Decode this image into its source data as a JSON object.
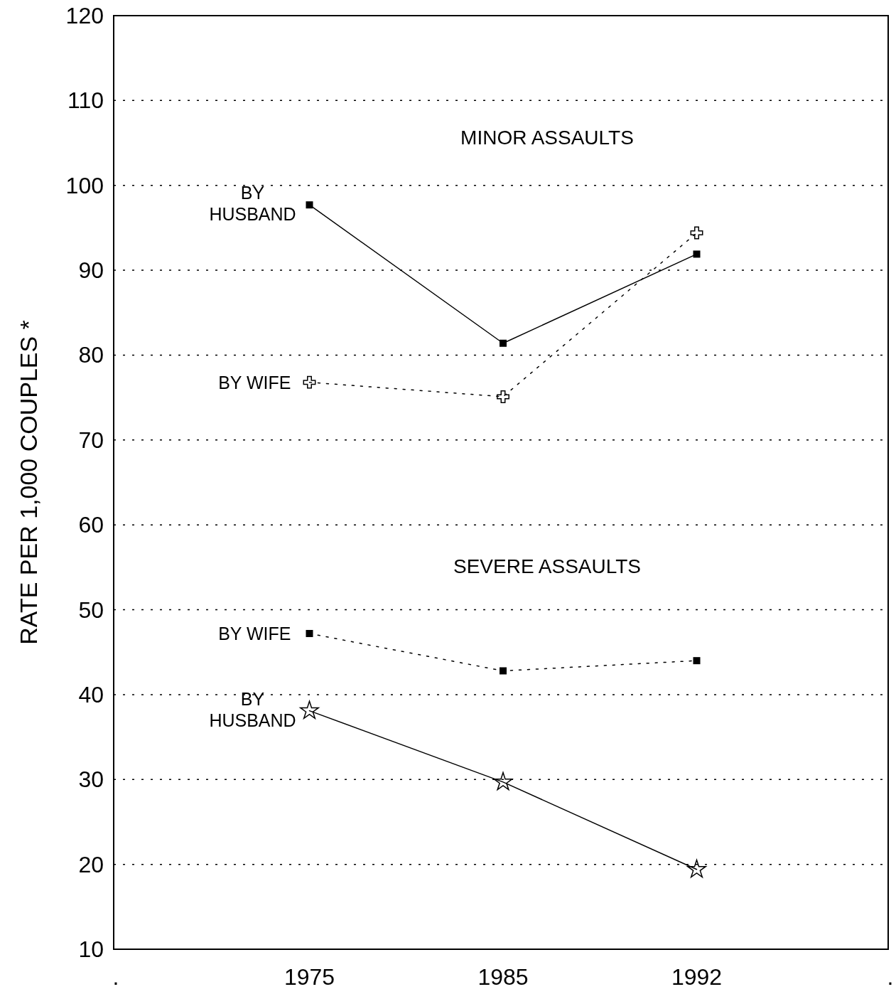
{
  "chart_data": {
    "type": "line",
    "ylabel": "RATE PER 1,000 COUPLES *",
    "categories": [
      ".",
      "1975",
      "1985",
      "1992",
      "."
    ],
    "series": [
      {
        "name": "BY HUSBAND",
        "color": "#000000",
        "values": [
          null,
          97.7,
          81.4,
          91.9,
          null
        ],
        "marker": "square",
        "line_style": "solid"
      },
      {
        "name": "BY WIFE",
        "color": "#000000",
        "values": [
          null,
          76.8,
          75.1,
          94.4,
          null
        ],
        "marker": "cross",
        "line_style": "dotted"
      },
      {
        "name": "BY WIFE",
        "color": "#000000",
        "values": [
          null,
          47.2,
          42.8,
          44.0,
          null
        ],
        "marker": "square",
        "line_style": "dotted"
      },
      {
        "name": "BY HUSBAND",
        "color": "#000000",
        "values": [
          null,
          38.1,
          29.7,
          19.4,
          null
        ],
        "marker": "star",
        "line_style": "solid"
      }
    ],
    "annotations": [
      "MINOR ASSAULTS",
      "SEVERE ASSAULTS"
    ],
    "ylim": [
      10,
      120
    ],
    "yticks": [
      10,
      20,
      30,
      40,
      50,
      60,
      70,
      80,
      90,
      100,
      110,
      120
    ],
    "grid": "y",
    "legend": "left"
  }
}
